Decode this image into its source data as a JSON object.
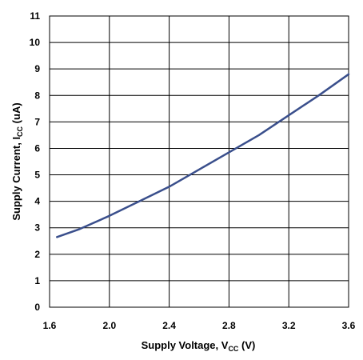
{
  "chart_data": {
    "type": "line",
    "xlabel": {
      "prefix": "Supply Voltage, V",
      "subscript": "CC",
      "suffix": " (V)"
    },
    "ylabel": {
      "prefix": "Supply Current, I",
      "subscript": "CC",
      "suffix": " (uA)"
    },
    "xlim": [
      1.6,
      3.6
    ],
    "ylim": [
      0,
      11
    ],
    "x_ticks": [
      1.6,
      2.0,
      2.4,
      2.8,
      3.2,
      3.6
    ],
    "x_tick_labels": [
      "1.6",
      "2.0",
      "2.4",
      "2.8",
      "3.2",
      "3.6"
    ],
    "y_ticks": [
      0,
      1,
      2,
      3,
      4,
      5,
      6,
      7,
      8,
      9,
      10,
      11
    ],
    "y_tick_labels": [
      "0",
      "1",
      "2",
      "3",
      "4",
      "5",
      "6",
      "7",
      "8",
      "9",
      "10",
      "11"
    ],
    "grid": true,
    "line_color": "#3a4f8c",
    "series": [
      {
        "x": [
          1.65,
          1.8,
          2.0,
          2.2,
          2.4,
          2.6,
          2.8,
          3.0,
          3.2,
          3.4,
          3.6
        ],
        "values": [
          2.65,
          2.95,
          3.45,
          4.0,
          4.55,
          5.2,
          5.85,
          6.5,
          7.25,
          8.0,
          8.8
        ]
      }
    ]
  }
}
